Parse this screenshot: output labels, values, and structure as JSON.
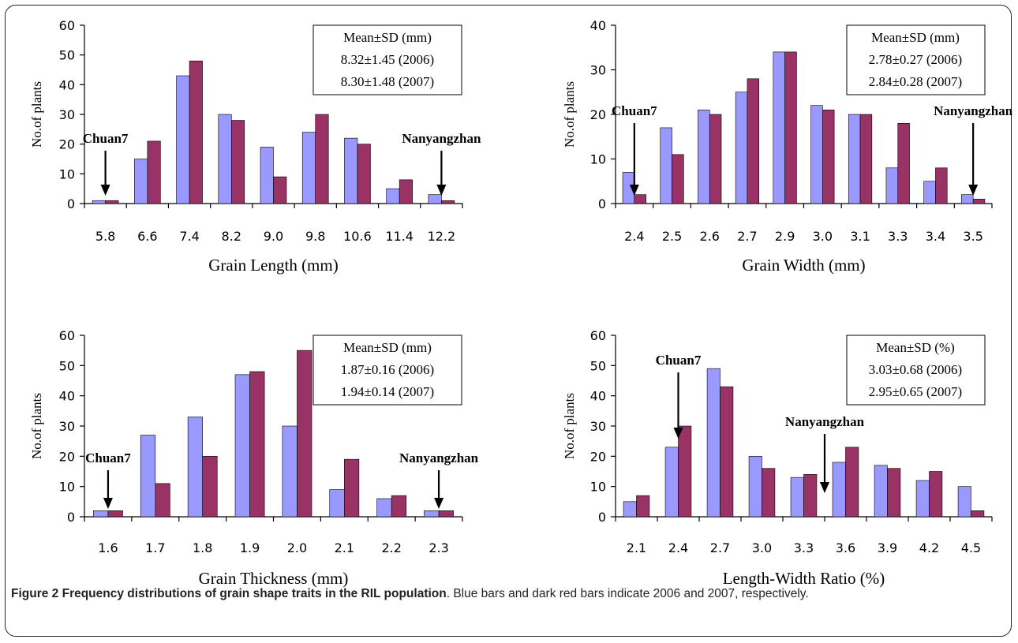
{
  "colors": {
    "series_2006": "#9999ff",
    "series_2007": "#993366"
  },
  "caption": {
    "label": "Figure 2 Frequency distributions of grain shape traits in the RIL population",
    "text": ". Blue bars and dark red bars indicate 2006 and 2007, respectively."
  },
  "chart_data": [
    {
      "type": "bar",
      "xlabel": "Grain Length (mm)",
      "ylabel": "No.of plants",
      "ylim": [
        0,
        60
      ],
      "yticks": [
        0,
        10,
        20,
        30,
        40,
        50,
        60
      ],
      "categories": [
        "5.8",
        "6.6",
        "7.4",
        "8.2",
        "9.0",
        "9.8",
        "10.6",
        "11.4",
        "12.2"
      ],
      "series": [
        {
          "values": [
            1,
            15,
            43,
            30,
            19,
            24,
            22,
            5,
            3
          ]
        },
        {
          "values": [
            1,
            21,
            48,
            28,
            9,
            30,
            20,
            8,
            1
          ]
        }
      ],
      "stats_box": [
        "Mean±SD (mm)",
        "8.32±1.45 (2006)",
        "8.30±1.48 (2007)"
      ],
      "annotations": [
        {
          "text": "Chuan7",
          "category_index": 0
        },
        {
          "text": "Nanyangzhan",
          "category_index": 8
        }
      ]
    },
    {
      "type": "bar",
      "xlabel": "Grain Width (mm)",
      "ylabel": "No.of plants",
      "ylim": [
        0,
        40
      ],
      "yticks": [
        0,
        10,
        20,
        30,
        40
      ],
      "categories": [
        "2.4",
        "2.5",
        "2.6",
        "2.7",
        "2.9",
        "3.0",
        "3.1",
        "3.3",
        "3.4",
        "3.5"
      ],
      "series": [
        {
          "values": [
            7,
            17,
            21,
            25,
            34,
            22,
            20,
            8,
            5,
            2
          ]
        },
        {
          "values": [
            2,
            11,
            20,
            28,
            34,
            21,
            20,
            18,
            8,
            1
          ]
        }
      ],
      "stats_box": [
        "Mean±SD (mm)",
        "2.78±0.27 (2006)",
        "2.84±0.28 (2007)"
      ],
      "annotations": [
        {
          "text": "Chuan7",
          "category_index": 0
        },
        {
          "text": "Nanyangzhan",
          "category_index": 9
        }
      ]
    },
    {
      "type": "bar",
      "xlabel": "Grain Thickness (mm)",
      "ylabel": "No.of plants",
      "ylim": [
        0,
        60
      ],
      "yticks": [
        0,
        10,
        20,
        30,
        40,
        50,
        60
      ],
      "categories": [
        "1.6",
        "1.7",
        "1.8",
        "1.9",
        "2.0",
        "2.1",
        "2.2",
        "2.3"
      ],
      "series": [
        {
          "values": [
            2,
            27,
            33,
            47,
            30,
            9,
            6,
            2
          ]
        },
        {
          "values": [
            2,
            11,
            20,
            48,
            55,
            19,
            7,
            2
          ]
        }
      ],
      "stats_box": [
        "Mean±SD (mm)",
        "1.87±0.16 (2006)",
        "1.94±0.14 (2007)"
      ],
      "annotations": [
        {
          "text": "Chuan7",
          "category_index": 0
        },
        {
          "text": "Nanyangzhan",
          "category_index": 7
        }
      ]
    },
    {
      "type": "bar",
      "xlabel": "Length-Width Ratio (%)",
      "ylabel": "No.of plants",
      "ylim": [
        0,
        60
      ],
      "yticks": [
        0,
        10,
        20,
        30,
        40,
        50,
        60
      ],
      "categories": [
        "2.1",
        "2.4",
        "2.7",
        "3.0",
        "3.3",
        "3.6",
        "3.9",
        "4.2",
        "4.5"
      ],
      "series": [
        {
          "values": [
            5,
            23,
            49,
            20,
            13,
            18,
            17,
            12,
            10
          ]
        },
        {
          "values": [
            7,
            30,
            43,
            16,
            14,
            23,
            16,
            15,
            2
          ]
        }
      ],
      "stats_box": [
        "Mean±SD (%)",
        "3.03±0.68 (2006)",
        "2.95±0.65 (2007)"
      ],
      "annotations": [
        {
          "text": "Chuan7",
          "category_index": 1
        },
        {
          "text": "Nanyangzhan",
          "category_index": 4.5
        }
      ]
    }
  ]
}
